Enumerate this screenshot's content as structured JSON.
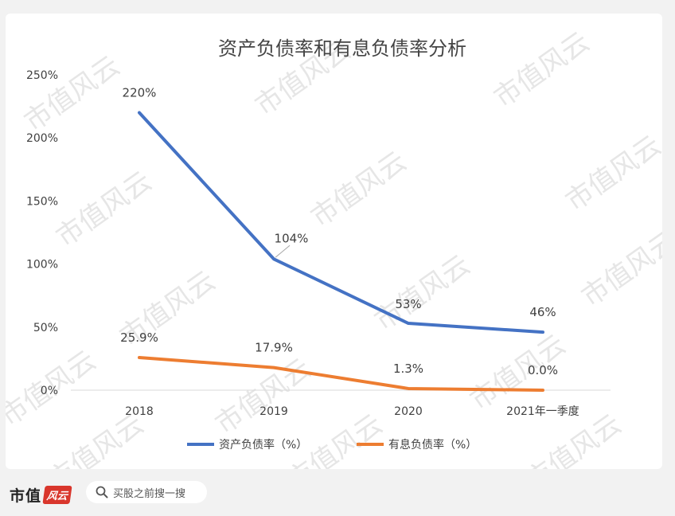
{
  "chart_data": {
    "type": "line",
    "title": "资产负债率和有息负债率分析",
    "categories": [
      "2018",
      "2019",
      "2020",
      "2021年一季度"
    ],
    "ylim": [
      0,
      250
    ],
    "yticks": [
      "0%",
      "50%",
      "100%",
      "150%",
      "200%",
      "250%"
    ],
    "grid": false,
    "legend_position": "bottom",
    "series": [
      {
        "name": "资产负债率（%）",
        "values": [
          220,
          104,
          53,
          46
        ],
        "labels": [
          "220%",
          "104%",
          "53%",
          "46%"
        ],
        "color": "#4472c4"
      },
      {
        "name": "有息负债率（%）",
        "values": [
          25.9,
          17.9,
          1.3,
          0.0
        ],
        "labels": [
          "25.9%",
          "17.9%",
          "1.3%",
          "0.0%"
        ],
        "color": "#ed7d31"
      }
    ]
  },
  "watermark": {
    "text": "市值风云",
    "color": "#e6e6e6"
  },
  "footer": {
    "brand": "市值",
    "brand_mark": "风云",
    "search_icon": "search-icon",
    "search_text": "买股之前搜一搜"
  }
}
